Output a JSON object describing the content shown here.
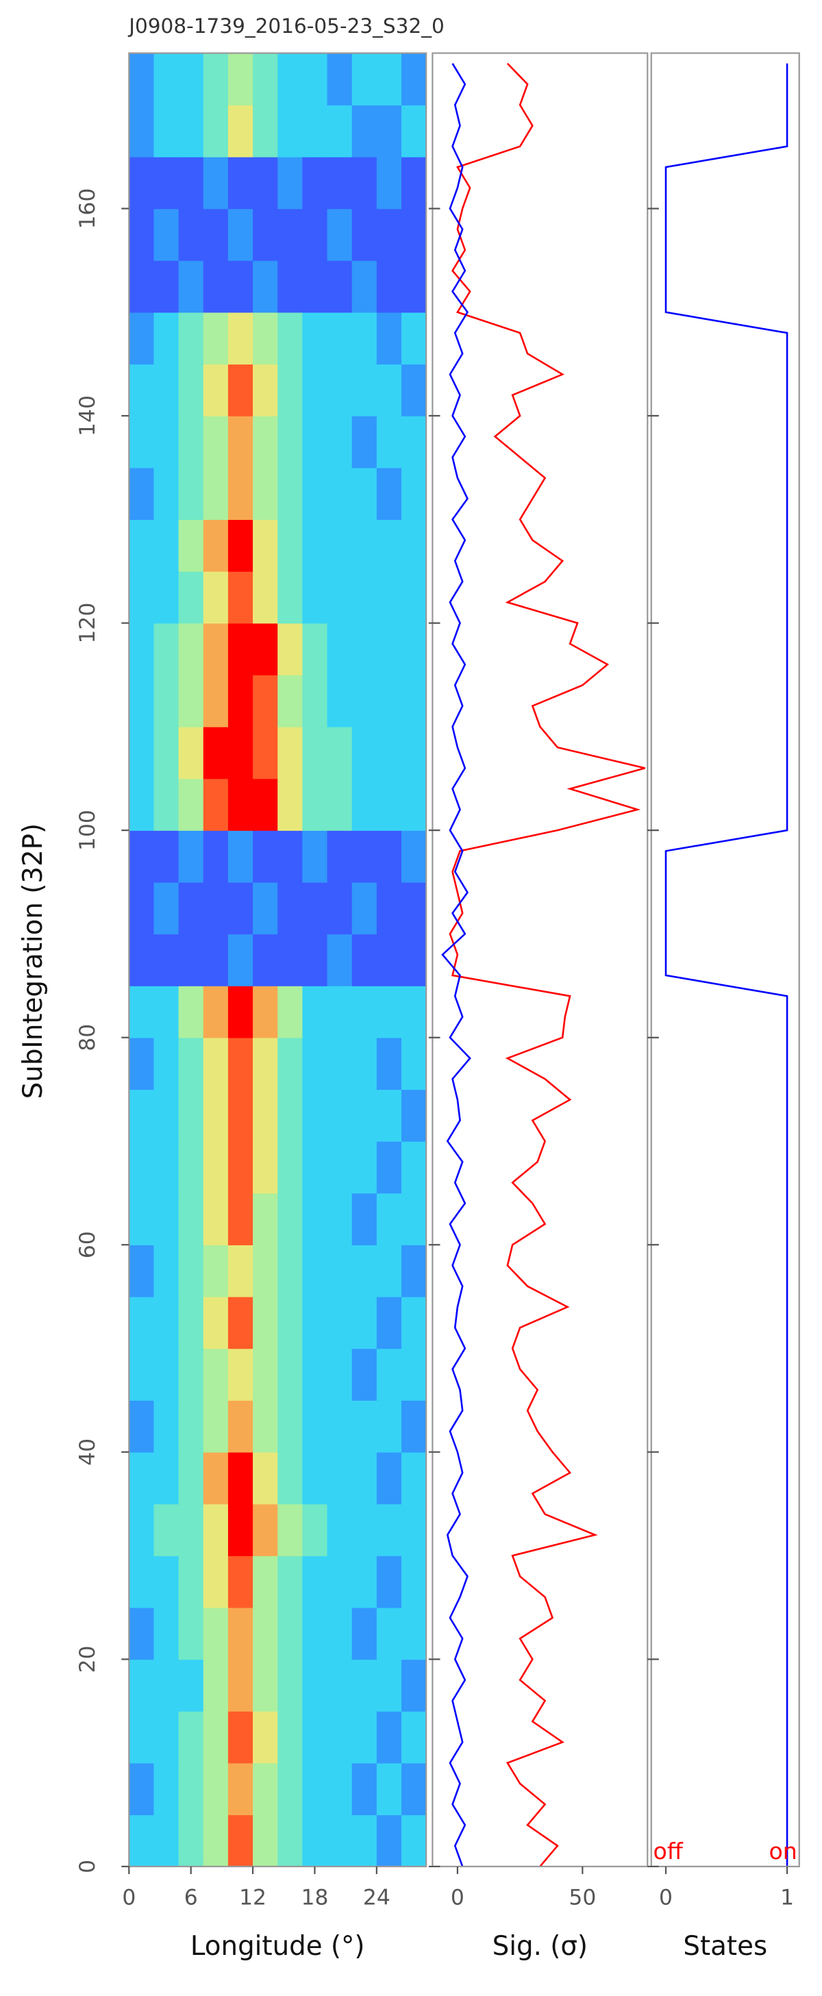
{
  "chart_data": [
    {
      "type": "heatmap",
      "title": "J0908-1739_2016-05-23_S32_0",
      "xlabel": "Longitude (°)",
      "ylabel": "SubIntegration (32P)",
      "xlim": [
        0,
        28.8
      ],
      "xticks": [
        0,
        6,
        12,
        18,
        24
      ],
      "ylim": [
        0,
        175
      ],
      "yticks": [
        0,
        20,
        40,
        60,
        80,
        100,
        120,
        140,
        160
      ],
      "x_edges": [
        0,
        2.4,
        4.8,
        7.2,
        9.6,
        12,
        14.4,
        16.8,
        19.2,
        21.6,
        24,
        26.4,
        28.8
      ],
      "y_edges": [
        0,
        5,
        10,
        15,
        20,
        25,
        30,
        35,
        40,
        45,
        50,
        55,
        60,
        65,
        70,
        75,
        80,
        85,
        90,
        95,
        100,
        105,
        110,
        115,
        120,
        125,
        130,
        135,
        140,
        145,
        150,
        155,
        160,
        165,
        170,
        175
      ],
      "zlim": [
        1,
        10
      ],
      "colors": [
        "#5020ff",
        "#2f7bff",
        "#37d3f5",
        "#8ef2b0",
        "#e8e87a",
        "#ff8a3d",
        "#ff0000"
      ],
      "z": [
        [
          4,
          4,
          5,
          6,
          9,
          6,
          5,
          4,
          4,
          4,
          3,
          4
        ],
        [
          3,
          4,
          5,
          6,
          8,
          6,
          5,
          4,
          4,
          3,
          4,
          3
        ],
        [
          4,
          4,
          5,
          6,
          9,
          7,
          5,
          4,
          4,
          4,
          3,
          4
        ],
        [
          4,
          4,
          4,
          6,
          8,
          6,
          5,
          4,
          4,
          4,
          4,
          3
        ],
        [
          3,
          4,
          5,
          6,
          8,
          6,
          5,
          4,
          4,
          3,
          4,
          4
        ],
        [
          4,
          4,
          5,
          7,
          9,
          6,
          5,
          4,
          4,
          4,
          3,
          4
        ],
        [
          4,
          5,
          5,
          7,
          10,
          8,
          6,
          5,
          4,
          4,
          4,
          4
        ],
        [
          4,
          4,
          5,
          8,
          10,
          7,
          5,
          4,
          4,
          4,
          3,
          4
        ],
        [
          3,
          4,
          5,
          6,
          8,
          6,
          5,
          4,
          4,
          4,
          4,
          3
        ],
        [
          4,
          4,
          5,
          6,
          7,
          6,
          5,
          4,
          4,
          3,
          4,
          4
        ],
        [
          4,
          4,
          5,
          7,
          9,
          6,
          5,
          4,
          4,
          4,
          3,
          4
        ],
        [
          3,
          4,
          5,
          6,
          7,
          6,
          5,
          4,
          4,
          4,
          4,
          3
        ],
        [
          4,
          4,
          5,
          7,
          9,
          6,
          5,
          4,
          4,
          3,
          4,
          4
        ],
        [
          4,
          4,
          5,
          7,
          9,
          7,
          5,
          4,
          4,
          4,
          3,
          4
        ],
        [
          4,
          4,
          5,
          7,
          9,
          7,
          5,
          4,
          4,
          4,
          4,
          3
        ],
        [
          3,
          4,
          5,
          7,
          9,
          7,
          5,
          4,
          4,
          4,
          3,
          4
        ],
        [
          4,
          4,
          6,
          8,
          10,
          8,
          6,
          4,
          4,
          4,
          4,
          4
        ],
        [
          2,
          2,
          2,
          2,
          3,
          2,
          2,
          2,
          3,
          2,
          2,
          2
        ],
        [
          2,
          3,
          2,
          2,
          2,
          3,
          2,
          2,
          2,
          3,
          2,
          2
        ],
        [
          2,
          2,
          3,
          2,
          3,
          2,
          2,
          3,
          2,
          2,
          2,
          3
        ],
        [
          4,
          5,
          6,
          9,
          10,
          10,
          7,
          5,
          5,
          4,
          4,
          4
        ],
        [
          4,
          5,
          7,
          10,
          10,
          9,
          7,
          5,
          5,
          4,
          4,
          4
        ],
        [
          4,
          5,
          6,
          8,
          10,
          9,
          6,
          5,
          4,
          4,
          4,
          4
        ],
        [
          4,
          5,
          6,
          8,
          10,
          10,
          7,
          5,
          4,
          4,
          4,
          4
        ],
        [
          4,
          4,
          5,
          7,
          9,
          7,
          5,
          4,
          4,
          4,
          4,
          4
        ],
        [
          4,
          4,
          6,
          8,
          10,
          7,
          5,
          4,
          4,
          4,
          4,
          4
        ],
        [
          3,
          4,
          5,
          6,
          8,
          6,
          5,
          4,
          4,
          4,
          3,
          4
        ],
        [
          4,
          4,
          5,
          6,
          8,
          6,
          5,
          4,
          4,
          3,
          4,
          4
        ],
        [
          4,
          4,
          5,
          7,
          9,
          7,
          5,
          4,
          4,
          4,
          4,
          3
        ],
        [
          3,
          4,
          5,
          6,
          7,
          6,
          5,
          4,
          4,
          4,
          3,
          4
        ],
        [
          2,
          2,
          3,
          2,
          2,
          3,
          2,
          2,
          2,
          3,
          2,
          2
        ],
        [
          2,
          3,
          2,
          2,
          3,
          2,
          2,
          2,
          3,
          2,
          2,
          2
        ],
        [
          2,
          2,
          2,
          3,
          2,
          2,
          3,
          2,
          2,
          2,
          3,
          2
        ],
        [
          3,
          4,
          4,
          5,
          7,
          5,
          4,
          4,
          4,
          3,
          3,
          4
        ],
        [
          3,
          4,
          4,
          5,
          6,
          5,
          4,
          4,
          3,
          4,
          4,
          3
        ]
      ]
    },
    {
      "type": "line",
      "xlabel": "Sig. (σ)",
      "xlim": [
        -10,
        76
      ],
      "xticks": [
        0,
        50
      ],
      "y": [
        0,
        2,
        4,
        6,
        8,
        10,
        12,
        14,
        16,
        18,
        20,
        22,
        24,
        26,
        28,
        30,
        32,
        34,
        36,
        38,
        40,
        42,
        44,
        46,
        48,
        50,
        52,
        54,
        56,
        58,
        60,
        62,
        64,
        66,
        68,
        70,
        72,
        74,
        76,
        78,
        80,
        82,
        84,
        86,
        88,
        90,
        92,
        94,
        96,
        98,
        100,
        102,
        104,
        106,
        108,
        110,
        112,
        114,
        116,
        118,
        120,
        122,
        124,
        126,
        128,
        130,
        132,
        134,
        136,
        138,
        140,
        142,
        144,
        146,
        148,
        150,
        152,
        154,
        156,
        158,
        160,
        162,
        164,
        166,
        168,
        170,
        172,
        174
      ],
      "series": [
        {
          "color": "#ff0000",
          "values": [
            33,
            40,
            28,
            35,
            25,
            20,
            42,
            30,
            35,
            25,
            30,
            25,
            38,
            35,
            25,
            22,
            55,
            35,
            30,
            45,
            38,
            32,
            28,
            32,
            25,
            22,
            25,
            44,
            28,
            20,
            22,
            35,
            30,
            22,
            32,
            35,
            30,
            45,
            35,
            20,
            42,
            43,
            45,
            -2,
            0,
            -3,
            2,
            0,
            -2,
            1,
            40,
            72,
            45,
            75,
            40,
            33,
            30,
            50,
            60,
            45,
            48,
            20,
            35,
            42,
            30,
            25,
            30,
            35,
            25,
            15,
            25,
            22,
            42,
            28,
            25,
            0,
            5,
            -2,
            3,
            0,
            2,
            5,
            0,
            25,
            30,
            25,
            28,
            20
          ]
        },
        {
          "color": "#0000ff",
          "values": [
            2,
            -1,
            3,
            -2,
            1,
            -3,
            2,
            0,
            -2,
            3,
            -1,
            2,
            -3,
            1,
            4,
            -2,
            -4,
            1,
            -2,
            2,
            0,
            -3,
            2,
            1,
            -2,
            3,
            -1,
            0,
            2,
            -2,
            1,
            -3,
            3,
            -1,
            2,
            -4,
            1,
            0,
            -2,
            5,
            -3,
            2,
            -1,
            1,
            -6,
            3,
            -2,
            4,
            -1,
            2,
            -3,
            1,
            -2,
            3,
            0,
            -2,
            2,
            -1,
            3,
            -2,
            1,
            -3,
            2,
            -1,
            3,
            -2,
            4,
            0,
            -2,
            3,
            -2,
            1,
            -3,
            2,
            -1,
            4,
            -2,
            3,
            -1,
            2,
            -3,
            0,
            2,
            -2,
            1,
            -1,
            3,
            -2
          ]
        }
      ]
    },
    {
      "type": "line",
      "xlabel": "States",
      "xlim": [
        -0.12,
        1.1
      ],
      "xticks": [
        0,
        1
      ],
      "state_labels": [
        "off",
        "on"
      ],
      "state_label_color": "#ff0000",
      "y": [
        0,
        2,
        4,
        6,
        8,
        10,
        12,
        14,
        16,
        18,
        20,
        22,
        24,
        26,
        28,
        30,
        32,
        34,
        36,
        38,
        40,
        42,
        44,
        46,
        48,
        50,
        52,
        54,
        56,
        58,
        60,
        62,
        64,
        66,
        68,
        70,
        72,
        74,
        76,
        78,
        80,
        82,
        84,
        86,
        88,
        90,
        92,
        94,
        96,
        98,
        100,
        102,
        104,
        106,
        108,
        110,
        112,
        114,
        116,
        118,
        120,
        122,
        124,
        126,
        128,
        130,
        132,
        134,
        136,
        138,
        140,
        142,
        144,
        146,
        148,
        150,
        152,
        154,
        156,
        158,
        160,
        162,
        164,
        166,
        168,
        170,
        172,
        174
      ],
      "series": [
        {
          "color": "#0000ff",
          "values": [
            1,
            1,
            1,
            1,
            1,
            1,
            1,
            1,
            1,
            1,
            1,
            1,
            1,
            1,
            1,
            1,
            1,
            1,
            1,
            1,
            1,
            1,
            1,
            1,
            1,
            1,
            1,
            1,
            1,
            1,
            1,
            1,
            1,
            1,
            1,
            1,
            1,
            1,
            1,
            1,
            1,
            1,
            1,
            0,
            0,
            0,
            0,
            0,
            0,
            0,
            1,
            1,
            1,
            1,
            1,
            1,
            1,
            1,
            1,
            1,
            1,
            1,
            1,
            1,
            1,
            1,
            1,
            1,
            1,
            1,
            1,
            1,
            1,
            1,
            1,
            0,
            0,
            0,
            0,
            0,
            0,
            0,
            0,
            1,
            1,
            1,
            1,
            1
          ]
        }
      ]
    }
  ]
}
